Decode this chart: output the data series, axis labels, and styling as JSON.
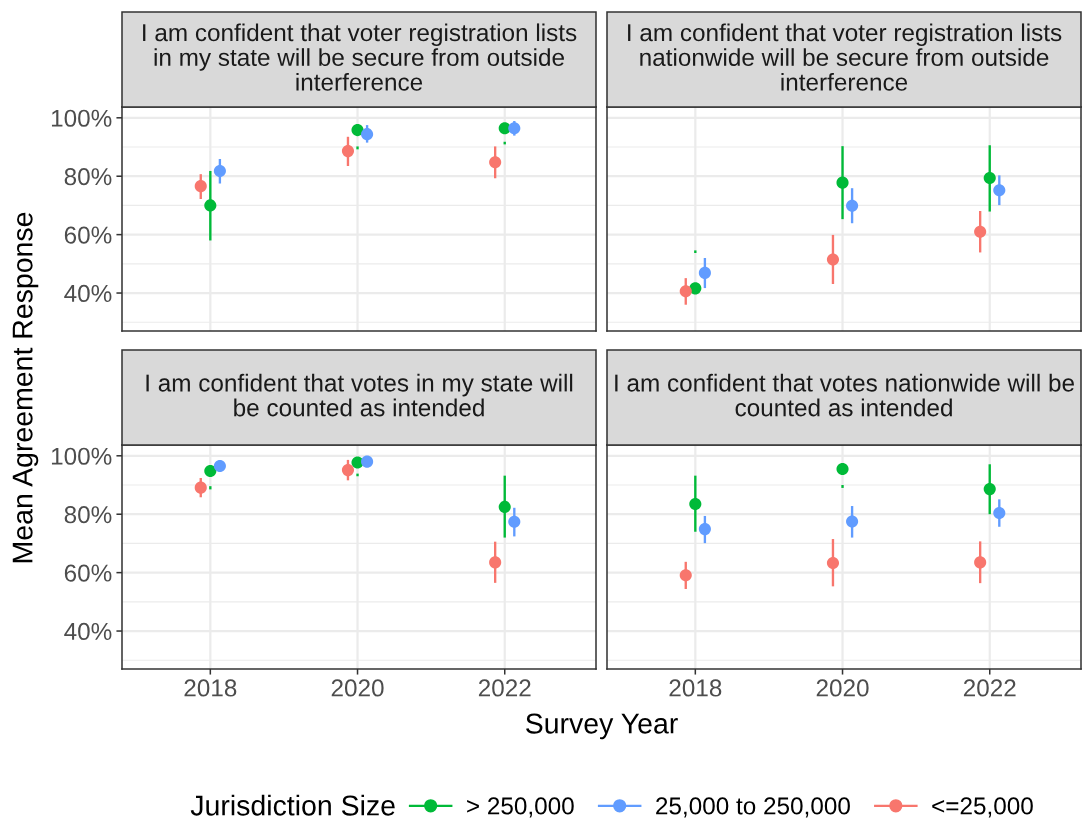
{
  "chart_data": [
    {
      "type": "scatter",
      "title": "I am confident that voter registration lists\nin my state will be secure from outside\ninterference",
      "ylabel": "Mean Agreement Response",
      "legend": "bottom",
      "legend_title": "Jurisdiction Size",
      "marker": "circle",
      "grid": true,
      "tick_labels": "y",
      "xlim": [
        2016.8,
        2023.24
      ],
      "xticks": [
        2018,
        2020,
        2022
      ],
      "ylim": [
        27,
        103.7
      ],
      "yticks": [
        {
          "value": 30,
          "label": null
        },
        {
          "value": 40,
          "label": "40%"
        },
        {
          "value": 50,
          "label": null
        },
        {
          "value": 60,
          "label": "60%"
        },
        {
          "value": 70,
          "label": null
        },
        {
          "value": 80,
          "label": "80%"
        },
        {
          "value": 90,
          "label": null
        },
        {
          "value": 100,
          "label": "100%"
        }
      ],
      "series": [
        {
          "name": "> 250,000",
          "color": "#00ba38",
          "x": [
            2018,
            2020,
            2022
          ],
          "values": [
            70,
            95.8,
            96.4
          ],
          "errors": [
            [
              58,
              81.8
            ],
            [
              89.2,
              90.2
            ],
            [
              90.9,
              91.8
            ]
          ]
        },
        {
          "name": "25,000 to 250,000",
          "color": "#619cff",
          "x": [
            2018.13,
            2020.13,
            2022.13
          ],
          "values": [
            81.8,
            94.4,
            96.4
          ],
          "errors": [
            [
              77.5,
              85.9
            ],
            [
              91.5,
              97.5
            ],
            [
              93.9,
              98.9
            ]
          ]
        },
        {
          "name": "<=25,000",
          "color": "#f8766d",
          "x": [
            2017.87,
            2019.87,
            2021.87
          ],
          "values": [
            76.6,
            88.6,
            84.8
          ],
          "errors": [
            [
              72.2,
              80.7
            ],
            [
              83.5,
              93.5
            ],
            [
              79.3,
              90.2
            ]
          ]
        }
      ]
    },
    {
      "type": "scatter",
      "title": "I am confident that voter registration lists\nnationwide will be secure from outside\ninterference",
      "marker": "circle",
      "grid": true,
      "tick_labels": false,
      "xlim": [
        2016.8,
        2023.24
      ],
      "xticks": [
        2018,
        2020,
        2022
      ],
      "ylim": [
        27,
        103.7
      ],
      "yticks": [
        {
          "value": 30,
          "label": null
        },
        40,
        {
          "value": 50,
          "label": null
        },
        60,
        {
          "value": 70,
          "label": null
        },
        80,
        {
          "value": 90,
          "label": null
        },
        100
      ],
      "series": [
        {
          "name": "> 250,000",
          "color": "#00ba38",
          "x": [
            2018,
            2020,
            2022
          ],
          "values": [
            41.6,
            77.8,
            79.4
          ],
          "errors": [
            [
              53.7,
              54.6
            ],
            [
              65.3,
              90.3
            ],
            [
              67.9,
              90.6
            ]
          ]
        },
        {
          "name": "25,000 to 250,000",
          "color": "#619cff",
          "x": [
            2018.13,
            2020.13,
            2022.13
          ],
          "values": [
            46.9,
            69.9,
            75.2
          ],
          "errors": [
            [
              41.7,
              52
            ],
            [
              63.9,
              75.9
            ],
            [
              70.1,
              80.3
            ]
          ]
        },
        {
          "name": "<=25,000",
          "color": "#f8766d",
          "x": [
            2017.87,
            2019.87,
            2021.87
          ],
          "values": [
            40.6,
            51.5,
            61
          ],
          "errors": [
            [
              36,
              45.1
            ],
            [
              43.1,
              59.9
            ],
            [
              53.9,
              68.1
            ]
          ]
        }
      ]
    },
    {
      "type": "scatter",
      "title": "I am confident that votes in my state will\nbe counted as intended",
      "xlabel": "Survey Year",
      "marker": "circle",
      "grid": true,
      "xlim": [
        2016.8,
        2023.24
      ],
      "xticks": [
        2018,
        2020,
        2022
      ],
      "ylim": [
        27,
        103.7
      ],
      "yticks": [
        {
          "value": 30,
          "label": null
        },
        {
          "value": 40,
          "label": "40%"
        },
        {
          "value": 50,
          "label": null
        },
        {
          "value": 60,
          "label": "60%"
        },
        {
          "value": 70,
          "label": null
        },
        {
          "value": 80,
          "label": "80%"
        },
        {
          "value": 90,
          "label": null
        },
        {
          "value": 100,
          "label": "100%"
        }
      ],
      "series": [
        {
          "name": "> 250,000",
          "color": "#00ba38",
          "x": [
            2018,
            2020,
            2022
          ],
          "values": [
            94.8,
            97.7,
            82.5
          ],
          "errors": [
            [
              88.5,
              89.6
            ],
            [
              93,
              93.9
            ],
            [
              72,
              93.2
            ]
          ]
        },
        {
          "name": "25,000 to 250,000",
          "color": "#619cff",
          "x": [
            2018.13,
            2020.13,
            2022.13
          ],
          "values": [
            96.5,
            98,
            77.4
          ],
          "errors": [
            null,
            null,
            [
              72.4,
              82.2
            ]
          ]
        },
        {
          "name": "<=25,000",
          "color": "#f8766d",
          "x": [
            2017.87,
            2019.87,
            2021.87
          ],
          "values": [
            89.1,
            95.1,
            63.5
          ],
          "errors": [
            [
              85.8,
              92.4
            ],
            [
              91.6,
              98.6
            ],
            [
              56.5,
              70.6
            ]
          ]
        }
      ]
    },
    {
      "type": "scatter",
      "title": "I am confident that votes nationwide will be\ncounted as intended",
      "marker": "circle",
      "grid": true,
      "tick_labels": "x",
      "xlim": [
        2016.8,
        2023.24
      ],
      "xticks": [
        2018,
        2020,
        2022
      ],
      "ylim": [
        27,
        103.7
      ],
      "yticks": [
        {
          "value": 30,
          "label": null
        },
        40,
        {
          "value": 50,
          "label": null
        },
        60,
        {
          "value": 70,
          "label": null
        },
        80,
        {
          "value": 90,
          "label": null
        },
        100
      ],
      "series": [
        {
          "name": "> 250,000",
          "color": "#00ba38",
          "x": [
            2018,
            2020,
            2022
          ],
          "values": [
            83.5,
            95.5,
            88.6
          ],
          "errors": [
            [
              74,
              93.2
            ],
            [
              89,
              90
            ],
            [
              80,
              97.1
            ]
          ]
        },
        {
          "name": "25,000 to 250,000",
          "color": "#619cff",
          "x": [
            2018.13,
            2020.13,
            2022.13
          ],
          "values": [
            74.9,
            77.5,
            80.4
          ],
          "errors": [
            [
              70.1,
              79.4
            ],
            [
              72,
              82.8
            ],
            [
              75.7,
              85.1
            ]
          ]
        },
        {
          "name": "<=25,000",
          "color": "#f8766d",
          "x": [
            2017.87,
            2019.87,
            2021.87
          ],
          "values": [
            59.1,
            63.3,
            63.5
          ],
          "errors": [
            [
              54.4,
              63.7
            ],
            [
              55.3,
              71.5
            ],
            [
              56.4,
              70.7
            ]
          ]
        }
      ]
    }
  ]
}
